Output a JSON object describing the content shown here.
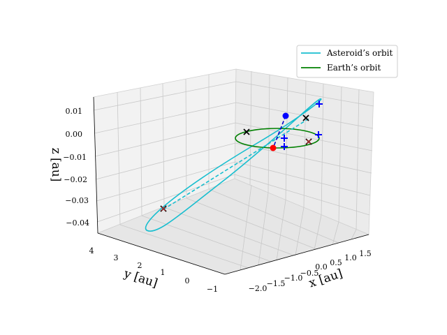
{
  "chart_data": {
    "type": "line-3d",
    "title": "",
    "axes": {
      "x": {
        "label": "x [au]",
        "ticks": [
          "−2.0",
          "−1.5",
          "−1.0",
          "−0.5",
          "0.0",
          "0.5",
          "1.0",
          "1.5"
        ]
      },
      "y": {
        "label": "y [au]",
        "ticks": [
          "4",
          "3",
          "2",
          "1",
          "0",
          "−1"
        ]
      },
      "z": {
        "label": "z [au]",
        "ticks": [
          "0.01",
          "0.00",
          "−0.01",
          "−0.02",
          "−0.03",
          "−0.04"
        ]
      }
    },
    "grid": true,
    "legend_position": "top-right",
    "series": [
      {
        "name": "Asteroid’s orbit",
        "color": "#17becf",
        "style": "solid"
      },
      {
        "name": "Earth’s orbit",
        "color": "#008000",
        "style": "solid"
      }
    ],
    "colors": {
      "asteroid": "#17becf",
      "earth": "#008000",
      "asteroid_position": "#0000ff",
      "earth_position": "#ff0000",
      "cross_marker": "#000000",
      "plus_marker": "#0000ff",
      "red_cross": "#a52a2a"
    }
  }
}
